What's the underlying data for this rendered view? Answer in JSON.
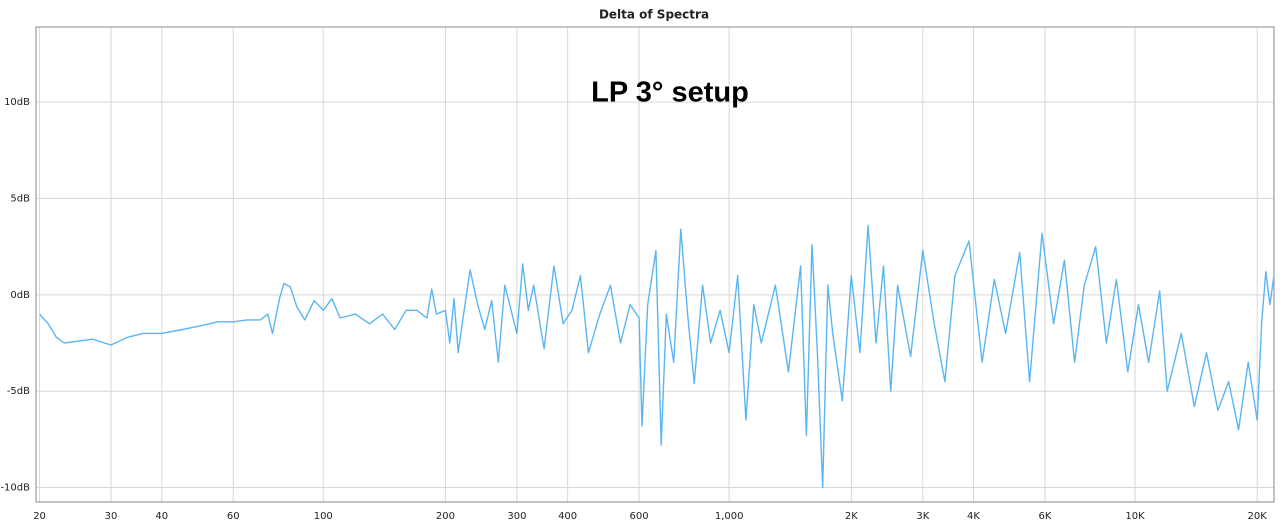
{
  "chart_data": {
    "type": "line",
    "title": "Delta of Spectra",
    "annotation": "LP 3° setup",
    "x_scale": "log",
    "grid": true,
    "xlim": [
      19.6,
      22000
    ],
    "ylim": [
      -10.75,
      13.9
    ],
    "xticks": [
      20,
      30,
      40,
      60,
      100,
      200,
      300,
      400,
      600,
      {
        "value": 1000,
        "label": "1,000"
      },
      {
        "value": 2000,
        "label": "2K"
      },
      {
        "value": 3000,
        "label": "3K"
      },
      {
        "value": 4000,
        "label": "4K"
      },
      {
        "value": 6000,
        "label": "6K"
      },
      {
        "value": 10000,
        "label": "10K"
      },
      {
        "value": 20000,
        "label": "20K"
      }
    ],
    "yticks": [
      {
        "value": -10,
        "label": "-10dB"
      },
      {
        "value": -5,
        "label": "-5dB"
      },
      {
        "value": 0,
        "label": "0dB"
      },
      {
        "value": 5,
        "label": "5dB"
      },
      {
        "value": 10,
        "label": "10dB"
      }
    ],
    "x": [
      20,
      21,
      22,
      23,
      25,
      27,
      30,
      33,
      36,
      40,
      45,
      50,
      55,
      60,
      65,
      70,
      73,
      75,
      78,
      80,
      83,
      86,
      90,
      95,
      100,
      105,
      110,
      120,
      130,
      140,
      150,
      160,
      170,
      180,
      185,
      190,
      200,
      205,
      210,
      215,
      220,
      230,
      240,
      250,
      260,
      270,
      280,
      300,
      310,
      320,
      330,
      350,
      370,
      390,
      410,
      430,
      450,
      480,
      510,
      540,
      570,
      600,
      610,
      630,
      660,
      680,
      700,
      730,
      760,
      790,
      820,
      860,
      900,
      950,
      1000,
      1050,
      1100,
      1150,
      1200,
      1300,
      1400,
      1500,
      1550,
      1600,
      1650,
      1700,
      1750,
      1800,
      1900,
      2000,
      2100,
      2200,
      2300,
      2400,
      2500,
      2600,
      2800,
      3000,
      3200,
      3400,
      3600,
      3900,
      4200,
      4500,
      4800,
      5200,
      5500,
      5900,
      6300,
      6700,
      7100,
      7500,
      8000,
      8500,
      9000,
      9600,
      10200,
      10800,
      11500,
      12000,
      13000,
      14000,
      15000,
      16000,
      17000,
      18000,
      19000,
      20000,
      20500,
      21000,
      21500,
      22000
    ],
    "series": [
      {
        "color": "#5ab6f2",
        "values": [
          -1.0,
          -1.5,
          -2.2,
          -2.5,
          -2.4,
          -2.3,
          -2.6,
          -2.2,
          -2.0,
          -2.0,
          -1.8,
          -1.6,
          -1.4,
          -1.4,
          -1.3,
          -1.3,
          -1.0,
          -2.0,
          -0.2,
          0.6,
          0.4,
          -0.6,
          -1.3,
          -0.3,
          -0.8,
          -0.2,
          -1.2,
          -1.0,
          -1.5,
          -1.0,
          -1.8,
          -0.8,
          -0.8,
          -1.2,
          0.3,
          -1.0,
          -0.8,
          -2.5,
          -0.2,
          -3.0,
          -1.5,
          1.3,
          -0.5,
          -1.8,
          -0.3,
          -3.5,
          0.5,
          -2.0,
          1.6,
          -0.8,
          0.5,
          -2.8,
          1.5,
          -1.5,
          -0.8,
          1.0,
          -3.0,
          -1.0,
          0.5,
          -2.5,
          -0.5,
          -1.2,
          -6.8,
          -0.5,
          2.3,
          -7.8,
          -1.0,
          -3.5,
          3.4,
          -1.0,
          -4.6,
          0.5,
          -2.5,
          -0.8,
          -3.0,
          1.0,
          -6.5,
          -0.5,
          -2.5,
          0.5,
          -4.0,
          1.5,
          -7.3,
          2.6,
          -3.0,
          -10.0,
          0.5,
          -2.0,
          -5.5,
          1.0,
          -3.0,
          3.6,
          -2.5,
          1.5,
          -5.0,
          0.5,
          -3.2,
          2.3,
          -1.5,
          -4.5,
          1.0,
          2.8,
          -3.5,
          0.8,
          -2.0,
          2.2,
          -4.5,
          3.2,
          -1.5,
          1.8,
          -3.5,
          0.5,
          2.5,
          -2.5,
          0.8,
          -4.0,
          -0.5,
          -3.5,
          0.2,
          -5.0,
          -2.0,
          -5.8,
          -3.0,
          -6.0,
          -4.5,
          -7.0,
          -3.5,
          -6.5,
          -1.5,
          1.2,
          -0.5,
          1.0
        ]
      }
    ]
  }
}
